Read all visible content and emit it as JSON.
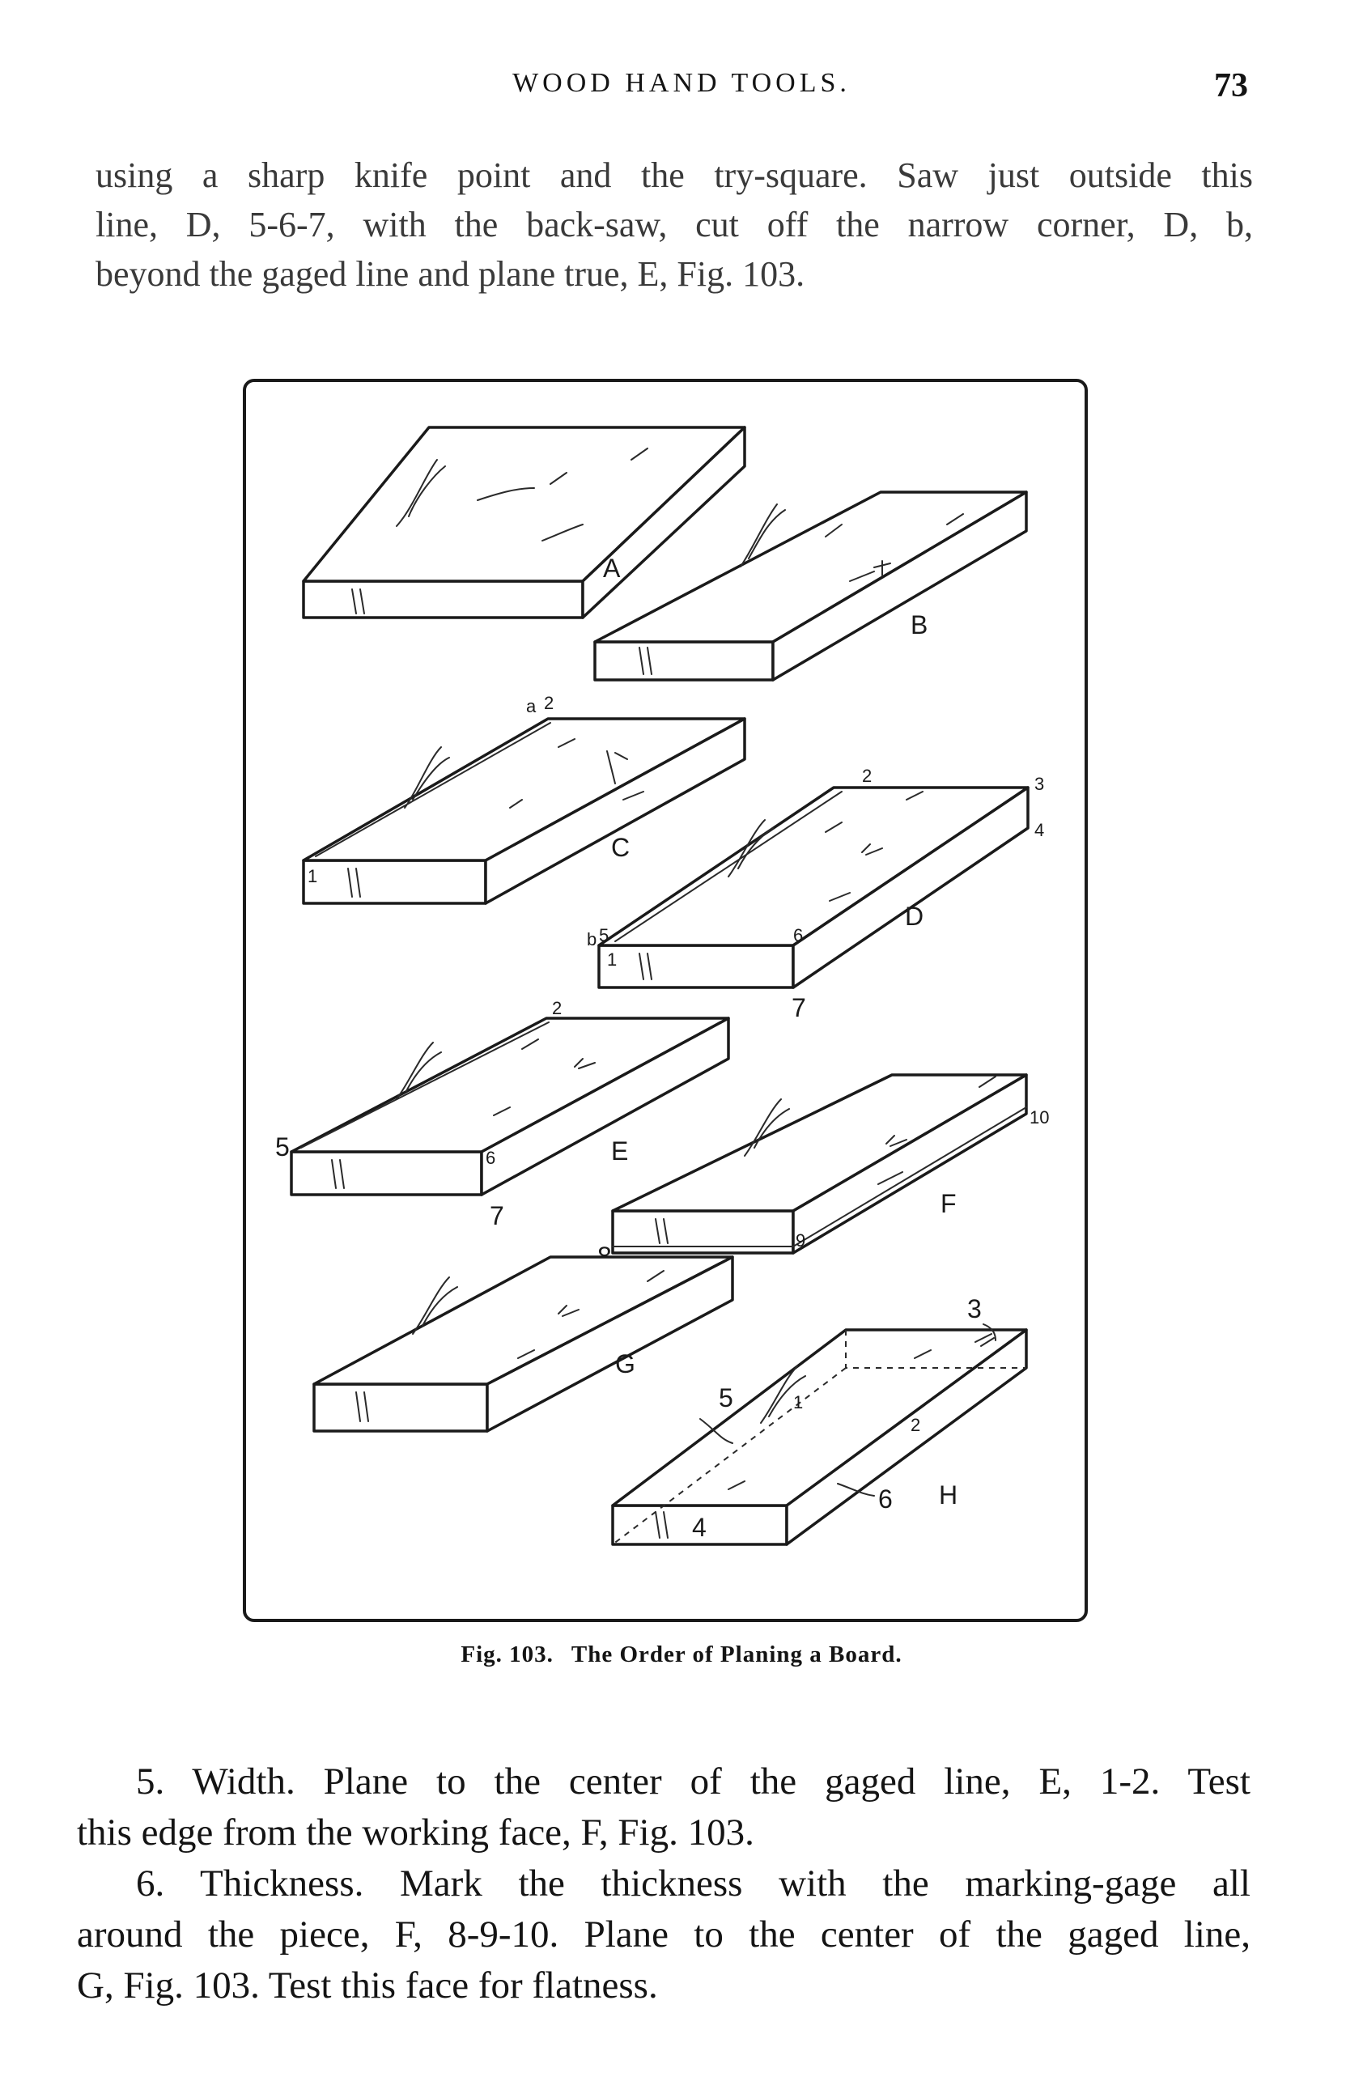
{
  "header": {
    "running_title": "WOOD HAND TOOLS.",
    "page_number": "73"
  },
  "paragraph_top": {
    "lines": [
      "using a sharp knife point and the try-square. Saw just outside this",
      "line, D, 5-6-7, with the back-saw, cut off the narrow corner, D, b,",
      "beyond the gaged line and plane true, E, Fig. 103."
    ]
  },
  "figure": {
    "caption_number": "Fig. 103.",
    "caption_text": "The Order of Planing a Board.",
    "boards": [
      {
        "letter": "A",
        "marks": []
      },
      {
        "letter": "B",
        "marks": []
      },
      {
        "letter": "C",
        "marks": [
          "a",
          "2",
          "1"
        ]
      },
      {
        "letter": "D",
        "marks": [
          "2",
          "3",
          "4",
          "5",
          "b",
          "1",
          "6",
          "7"
        ]
      },
      {
        "letter": "E",
        "marks": [
          "2",
          "5",
          "6",
          "7"
        ]
      },
      {
        "letter": "F",
        "marks": [
          "10",
          "8",
          "9"
        ]
      },
      {
        "letter": "G",
        "marks": []
      },
      {
        "letter": "H",
        "marks": [
          "3",
          "5",
          "1",
          "2",
          "6",
          "4"
        ]
      }
    ]
  },
  "paragraph_width": {
    "lines": [
      "5. Width. Plane to the center of the gaged line, E, 1-2. Test",
      "this edge from the working face, F, Fig. 103."
    ]
  },
  "paragraph_thickness": {
    "lines": [
      "6. Thickness. Mark the thickness with the marking-gage all",
      "around the piece, F, 8-9-10. Plane to the center of the gaged line,",
      "G, Fig. 103. Test this face for flatness."
    ]
  }
}
